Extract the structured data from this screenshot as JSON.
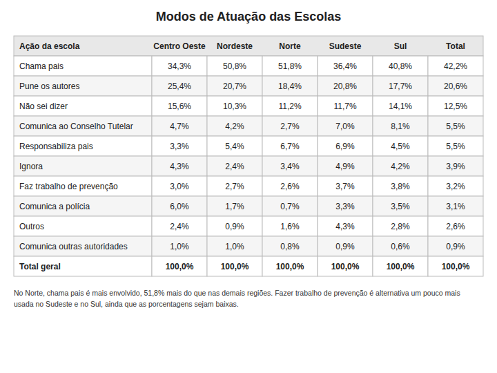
{
  "chart_data": {
    "type": "table",
    "title": "Modos de Atuação das Escolas",
    "xlabel": "Ação da escola",
    "categories": [
      "Chama pais",
      "Pune os autores",
      "Não sei dizer",
      "Comunica ao Conselho Tutelar",
      "Responsabiliza pais",
      "Ignora",
      "Faz trabalho de prevenção",
      "Comunica a polícia",
      "Outros",
      "Comunica outras autoridades",
      "Total geral"
    ],
    "series": [
      {
        "name": "Centro Oeste",
        "values": [
          34.3,
          25.4,
          15.6,
          4.7,
          3.3,
          4.3,
          3.0,
          6.0,
          2.4,
          1.0,
          100.0
        ],
        "value_labels": [
          "34,3%",
          "25,4%",
          "15,6%",
          "4,7%",
          "3,3%",
          "4,3%",
          "3,0%",
          "6,0%",
          "2,4%",
          "1,0%",
          "100,0%"
        ]
      },
      {
        "name": "Nordeste",
        "values": [
          50.8,
          20.7,
          10.3,
          4.2,
          5.4,
          2.4,
          2.7,
          1.7,
          0.9,
          1.0,
          100.0
        ],
        "value_labels": [
          "50,8%",
          "20,7%",
          "10,3%",
          "4,2%",
          "5,4%",
          "2,4%",
          "2,7%",
          "1,7%",
          "0,9%",
          "1,0%",
          "100,0%"
        ]
      },
      {
        "name": "Norte",
        "values": [
          51.8,
          18.4,
          11.2,
          2.7,
          6.7,
          3.4,
          2.6,
          0.7,
          1.6,
          0.8,
          100.0
        ],
        "value_labels": [
          "51,8%",
          "18,4%",
          "11,2%",
          "2,7%",
          "6,7%",
          "3,4%",
          "2,6%",
          "0,7%",
          "1,6%",
          "0,8%",
          "100,0%"
        ]
      },
      {
        "name": "Sudeste",
        "values": [
          36.4,
          20.8,
          11.7,
          7.0,
          6.9,
          4.9,
          3.7,
          3.3,
          4.3,
          0.9,
          100.0
        ],
        "value_labels": [
          "36,4%",
          "20,8%",
          "11,7%",
          "7,0%",
          "6,9%",
          "4,9%",
          "3,7%",
          "3,3%",
          "4,3%",
          "0,9%",
          "100,0%"
        ]
      },
      {
        "name": "Sul",
        "values": [
          40.8,
          17.7,
          14.1,
          8.1,
          4.5,
          4.2,
          3.8,
          3.5,
          2.8,
          0.6,
          100.0
        ],
        "value_labels": [
          "40,8%",
          "17,7%",
          "14,1%",
          "8,1%",
          "4,5%",
          "4,2%",
          "3,8%",
          "3,5%",
          "2,8%",
          "0,6%",
          "100,0%"
        ]
      },
      {
        "name": "Total",
        "values": [
          42.2,
          20.6,
          12.5,
          5.5,
          5.5,
          3.9,
          3.2,
          3.1,
          2.6,
          0.9,
          100.0
        ],
        "value_labels": [
          "42,2%",
          "20,6%",
          "12,5%",
          "5,5%",
          "5,5%",
          "3,9%",
          "3,2%",
          "3,1%",
          "2,6%",
          "0,9%",
          "100,0%"
        ]
      }
    ],
    "data_labels": true,
    "annotations": [
      "No Norte, chama pais é mais envolvido, 51,8% mais do que nas demais regiões. Fazer trabalho de prevenção é alternativa um pouco mais",
      "usada no Sudeste e no Sul, ainda que as porcentagens sejam baixas."
    ]
  }
}
